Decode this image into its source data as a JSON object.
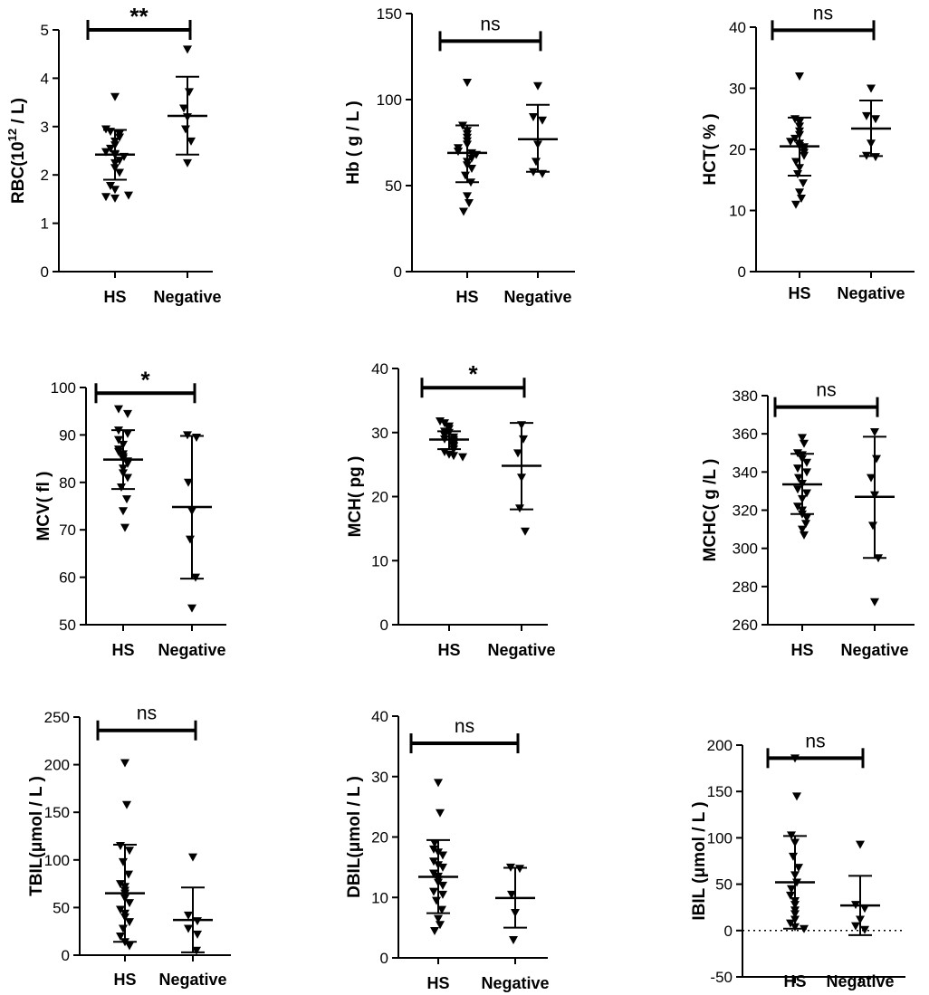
{
  "chart_data": [
    {
      "type": "scatter",
      "id": "rbc",
      "ylabel_main": "RBC(10",
      "ylabel_sup": "12",
      "ylabel_rest": " / L)",
      "ylim": [
        0,
        5
      ],
      "yticks": [
        0,
        1,
        2,
        3,
        4,
        5
      ],
      "categories": [
        "HS",
        "Negative"
      ],
      "groups": [
        {
          "name": "HS",
          "mean": 2.42,
          "sd_low": 1.9,
          "sd_high": 2.93,
          "values": [
            3.62,
            2.95,
            2.9,
            2.85,
            2.78,
            2.7,
            2.62,
            2.55,
            2.48,
            2.44,
            2.42,
            2.38,
            2.3,
            2.25,
            2.15,
            2.05,
            1.78,
            1.7,
            1.55,
            1.52,
            1.58
          ]
        },
        {
          "name": "Negative",
          "mean": 3.22,
          "sd_low": 2.42,
          "sd_high": 4.03,
          "values": [
            4.6,
            3.72,
            3.38,
            3.2,
            2.95,
            2.7,
            2.25
          ]
        }
      ],
      "significance": "**",
      "sig_value": 5.0,
      "ref_zero_line": false
    },
    {
      "type": "scatter",
      "id": "hb",
      "ylabel_main": "Hb ( g / L )",
      "ylim": [
        0,
        150
      ],
      "yticks": [
        0,
        50,
        100,
        150
      ],
      "categories": [
        "HS",
        "Negative"
      ],
      "groups": [
        {
          "name": "HS",
          "mean": 69,
          "sd_low": 52,
          "sd_high": 85,
          "values": [
            110,
            85,
            82,
            80,
            78,
            76,
            74,
            72,
            70,
            70,
            69,
            68,
            66,
            64,
            62,
            60,
            56,
            52,
            44,
            40,
            35
          ]
        },
        {
          "name": "Negative",
          "mean": 77,
          "sd_low": 58,
          "sd_high": 97,
          "values": [
            108,
            90,
            88,
            74,
            64,
            58,
            57
          ]
        }
      ],
      "significance": "ns",
      "sig_value": 134,
      "ref_zero_line": false
    },
    {
      "type": "scatter",
      "id": "hct",
      "ylabel_main": "HCT( % )",
      "ylim": [
        0,
        40
      ],
      "yticks": [
        0,
        10,
        20,
        30,
        40
      ],
      "categories": [
        "HS",
        "Negative"
      ],
      "groups": [
        {
          "name": "HS",
          "mean": 20.5,
          "sd_low": 15.7,
          "sd_high": 25.2,
          "values": [
            32,
            25,
            24.5,
            23.8,
            23,
            22.4,
            21.8,
            21.3,
            21,
            20.6,
            20.4,
            20,
            19.5,
            19,
            18,
            17,
            16,
            14.5,
            13,
            12,
            11
          ]
        },
        {
          "name": "Negative",
          "mean": 23.4,
          "sd_low": 18.9,
          "sd_high": 28
        },
        {
          "name": "_",
          "values": []
        }
      ],
      "neg_values": [
        30,
        25.5,
        25,
        21,
        19,
        18.8
      ],
      "significance": "ns",
      "sig_value": 39.5,
      "ref_zero_line": false
    },
    {
      "type": "scatter",
      "id": "mcv",
      "ylabel_main": "MCV( fl )",
      "ylim": [
        50,
        100
      ],
      "yticks": [
        50,
        60,
        70,
        80,
        90,
        100
      ],
      "categories": [
        "HS",
        "Negative"
      ],
      "groups": [
        {
          "name": "HS",
          "mean": 84.8,
          "sd_low": 78.6,
          "sd_high": 91,
          "values": [
            95.5,
            94.5,
            91,
            90.3,
            89,
            88,
            87,
            86.5,
            86,
            85.4,
            85,
            84.5,
            84,
            83,
            82,
            81,
            79,
            76.5,
            74,
            70.5
          ]
        },
        {
          "name": "Negative",
          "mean": 74.8,
          "sd_low": 59.7,
          "sd_high": 89.8,
          "values": [
            90,
            89.5,
            80,
            74,
            68,
            60,
            53.5
          ]
        }
      ],
      "significance": "*",
      "sig_value": 98.8,
      "ref_zero_line": false
    },
    {
      "type": "scatter",
      "id": "mch",
      "ylabel_main": "MCH( pg )",
      "ylim": [
        0,
        40
      ],
      "yticks": [
        0,
        10,
        20,
        30,
        40
      ],
      "categories": [
        "HS",
        "Negative"
      ],
      "groups": [
        {
          "name": "HS",
          "mean": 28.9,
          "sd_low": 27.4,
          "sd_high": 30.2,
          "values": [
            31.8,
            31.5,
            31,
            30.6,
            30.2,
            30,
            29.6,
            29.3,
            29,
            28.9,
            28.6,
            28.3,
            28,
            27.8,
            27.4,
            27,
            26.6,
            26.4,
            26.2
          ]
        },
        {
          "name": "Negative",
          "mean": 24.8,
          "sd_low": 18,
          "sd_high": 31.5,
          "values": [
            31.2,
            29,
            26.8,
            23,
            18.2,
            14.6
          ]
        }
      ],
      "significance": "*",
      "sig_value": 37,
      "ref_zero_line": false
    },
    {
      "type": "scatter",
      "id": "mchc",
      "ylabel_main": "MCHC( g /L )",
      "ylim": [
        260,
        380
      ],
      "yticks": [
        260,
        280,
        300,
        320,
        340,
        360,
        380
      ],
      "categories": [
        "HS",
        "Negative"
      ],
      "groups": [
        {
          "name": "HS",
          "mean": 333.5,
          "sd_low": 318,
          "sd_high": 349.5,
          "values": [
            358,
            355,
            350,
            349,
            347,
            345,
            342,
            340,
            337,
            334,
            331,
            329,
            326,
            322,
            320,
            318,
            316,
            313,
            310,
            307
          ]
        },
        {
          "name": "Negative",
          "mean": 327,
          "sd_low": 295,
          "sd_high": 358.5,
          "values": [
            361,
            347,
            337,
            328,
            312,
            295,
            272
          ]
        }
      ],
      "significance": "ns",
      "sig_value": 374,
      "ref_zero_line": false
    },
    {
      "type": "scatter",
      "id": "tbil",
      "ylabel_main": "TBIL(μmol / L )",
      "ylim": [
        0,
        250
      ],
      "yticks": [
        0,
        50,
        100,
        150,
        200,
        250
      ],
      "categories": [
        "HS",
        "Negative"
      ],
      "groups": [
        {
          "name": "HS",
          "mean": 65,
          "sd_low": 14,
          "sd_high": 116,
          "values": [
            202,
            158,
            115,
            110,
            98,
            85,
            75,
            72,
            68,
            65,
            60,
            55,
            48,
            44,
            40,
            35,
            28,
            20,
            14,
            10
          ]
        },
        {
          "name": "Negative",
          "mean": 37,
          "sd_low": 3,
          "sd_high": 71,
          "values": [
            103,
            42,
            36,
            28,
            22,
            5
          ]
        }
      ],
      "significance": "ns",
      "sig_value": 236,
      "ref_zero_line": false
    },
    {
      "type": "scatter",
      "id": "dbil",
      "ylabel_main": "DBIL(μmol / L )",
      "ylim": [
        0,
        40
      ],
      "yticks": [
        0,
        10,
        20,
        30,
        40
      ],
      "categories": [
        "HS",
        "Negative"
      ],
      "groups": [
        {
          "name": "HS",
          "mean": 13.4,
          "sd_low": 7.4,
          "sd_high": 19.5,
          "values": [
            29,
            24,
            19,
            18,
            17.5,
            17,
            16,
            15.4,
            15,
            14,
            13.5,
            13,
            12.5,
            12,
            11,
            10.5,
            9.5,
            8,
            6.5,
            5.5,
            4.5
          ]
        },
        {
          "name": "Negative",
          "mean": 9.9,
          "sd_low": 5,
          "sd_high": 14.9,
          "values": [
            15,
            14.8,
            10.5,
            7.5,
            3
          ]
        }
      ],
      "significance": "ns",
      "sig_value": 35.5,
      "ref_zero_line": false
    },
    {
      "type": "scatter",
      "id": "ibil",
      "ylabel_main": "IBIL (μmol / L )",
      "ylim": [
        -50,
        200
      ],
      "yticks": [
        -50,
        0,
        50,
        100,
        150,
        200
      ],
      "categories": [
        "HS",
        "Negative"
      ],
      "groups": [
        {
          "name": "HS",
          "mean": 52,
          "sd_low": 2,
          "sd_high": 102,
          "values": [
            186,
            145,
            103,
            95,
            80,
            68,
            60,
            52,
            45,
            38,
            32,
            28,
            22,
            18,
            12,
            8,
            4,
            2
          ]
        },
        {
          "name": "Negative",
          "mean": 27,
          "sd_low": -5,
          "sd_high": 59,
          "values": [
            93,
            28,
            24,
            12,
            5,
            1
          ]
        }
      ],
      "significance": "ns",
      "sig_value": 186,
      "ref_zero_line": true
    }
  ]
}
